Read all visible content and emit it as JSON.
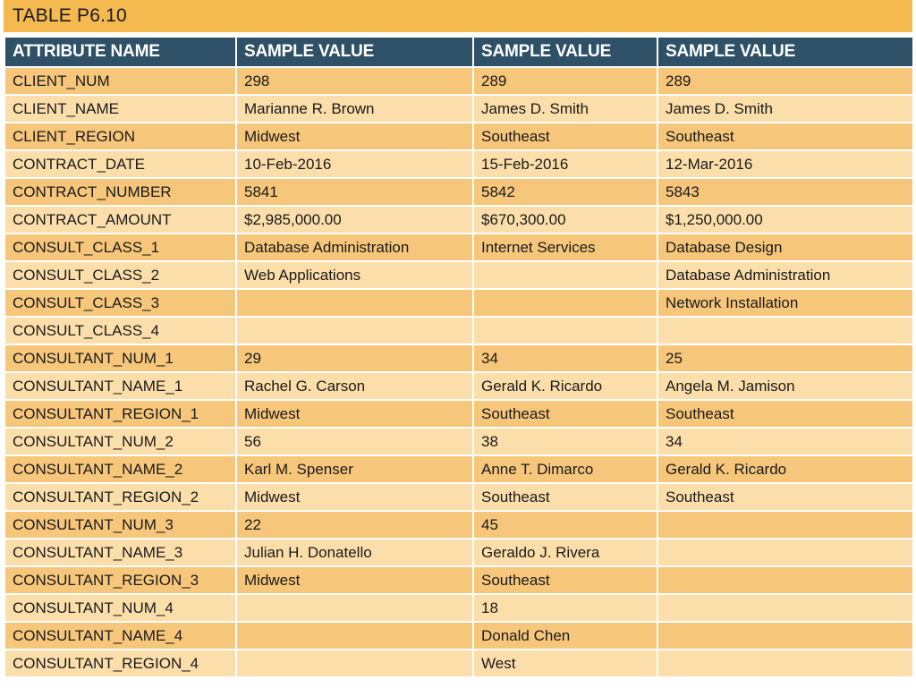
{
  "title": "TABLE P6.10",
  "headers": [
    "ATTRIBUTE NAME",
    "SAMPLE VALUE",
    "SAMPLE VALUE",
    "SAMPLE VALUE"
  ],
  "rows": [
    [
      "CLIENT_NUM",
      "298",
      "289",
      "289"
    ],
    [
      "CLIENT_NAME",
      "Marianne R. Brown",
      "James D. Smith",
      "James D. Smith"
    ],
    [
      "CLIENT_REGION",
      "Midwest",
      "Southeast",
      "Southeast"
    ],
    [
      "CONTRACT_DATE",
      "10-Feb-2016",
      "15-Feb-2016",
      "12-Mar-2016"
    ],
    [
      "CONTRACT_NUMBER",
      "5841",
      "5842",
      "5843"
    ],
    [
      "CONTRACT_AMOUNT",
      "$2,985,000.00",
      "$670,300.00",
      "$1,250,000.00"
    ],
    [
      "CONSULT_CLASS_1",
      "Database Administration",
      "Internet Services",
      "Database Design"
    ],
    [
      "CONSULT_CLASS_2",
      "Web Applications",
      "",
      "Database Administration"
    ],
    [
      "CONSULT_CLASS_3",
      "",
      "",
      "Network Installation"
    ],
    [
      "CONSULT_CLASS_4",
      "",
      "",
      ""
    ],
    [
      "CONSULTANT_NUM_1",
      "29",
      "34",
      "25"
    ],
    [
      "CONSULTANT_NAME_1",
      "Rachel G. Carson",
      "Gerald K. Ricardo",
      "Angela M. Jamison"
    ],
    [
      "CONSULTANT_REGION_1",
      "Midwest",
      "Southeast",
      "Southeast"
    ],
    [
      "CONSULTANT_NUM_2",
      "56",
      "38",
      "34"
    ],
    [
      "CONSULTANT_NAME_2",
      "Karl M. Spenser",
      "Anne T. Dimarco",
      "Gerald K. Ricardo"
    ],
    [
      "CONSULTANT_REGION_2",
      "Midwest",
      "Southeast",
      "Southeast"
    ],
    [
      "CONSULTANT_NUM_3",
      "22",
      "45",
      ""
    ],
    [
      "CONSULTANT_NAME_3",
      "Julian H. Donatello",
      "Geraldo J. Rivera",
      ""
    ],
    [
      "CONSULTANT_REGION_3",
      "Midwest",
      "Southeast",
      ""
    ],
    [
      "CONSULTANT_NUM_4",
      "",
      "18",
      ""
    ],
    [
      "CONSULTANT_NAME_4",
      "",
      "Donald Chen",
      ""
    ],
    [
      "CONSULTANT_REGION_4",
      "",
      "West",
      ""
    ]
  ],
  "colors": {
    "title_bar": "#F4B94F",
    "header_bg": "#2F5168",
    "row_odd": "#F6C67A",
    "row_even": "#FBDEAA"
  }
}
